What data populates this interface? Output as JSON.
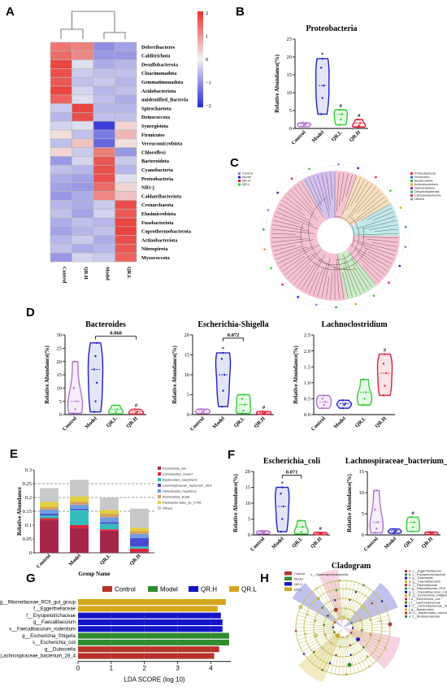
{
  "panel_letters": {
    "a": "A",
    "b": "B",
    "c": "C",
    "d": "D",
    "e": "E",
    "f": "F",
    "g": "G",
    "h": "H"
  },
  "colors": {
    "control": "#b070d0",
    "model": "#2020c8",
    "qrl": "#33cc33",
    "qrh": "#e0203a",
    "heat_high": "#e8322d",
    "heat_mid": "#f2f2f2",
    "heat_low": "#2a2ad6",
    "lda_control": "#b8322a",
    "lda_model": "#2e8b2e",
    "lda_qrh": "#1515c8",
    "lda_qrl": "#d4a61c"
  },
  "chart_data": [
    {
      "id": "A",
      "type": "heatmap",
      "columns": [
        "Control",
        "QR.H",
        "Model",
        "QR.L"
      ],
      "rows": [
        "Deferribacteres",
        "Calditrichota",
        "Desulfobacterota",
        "Cloacimonadota",
        "Gemmatimonadota",
        "Acidobacteriota",
        "unidentified_Bacteria",
        "Spirochaetota",
        "Deinococcota",
        "Synergistota",
        "Firmicutes",
        "Verrucomicrobiota",
        "Chloroflexi",
        "Bacteroidota",
        "Cyanobacteria",
        "Proteobacteria",
        "NB1-j",
        "Caldatribacteriota",
        "Crenarchaeota",
        "Elusimicrobiota",
        "Fusobacteriota",
        "Coprothermobacterota",
        "Actinobacteriota",
        "Nitrospirota",
        "Myxococcota"
      ],
      "values": [
        [
          1.3,
          1.2,
          -1.0,
          -0.8
        ],
        [
          1.4,
          1.1,
          -0.9,
          -0.9
        ],
        [
          1.8,
          -0.2,
          -0.7,
          -0.6
        ],
        [
          1.7,
          -0.4,
          -0.5,
          -0.5
        ],
        [
          1.6,
          -0.5,
          -0.4,
          -0.6
        ],
        [
          1.8,
          -0.3,
          -0.6,
          -0.5
        ],
        [
          1.5,
          -0.2,
          -0.5,
          -0.7
        ],
        [
          -0.4,
          1.8,
          -0.6,
          -0.6
        ],
        [
          -0.6,
          1.7,
          -0.5,
          -0.5
        ],
        [
          -0.3,
          -0.2,
          -1.8,
          0.3
        ],
        [
          0.2,
          -0.5,
          -1.2,
          0.6
        ],
        [
          -0.5,
          0.5,
          -1.4,
          0.2
        ],
        [
          0.3,
          -0.4,
          1.2,
          -0.9
        ],
        [
          -0.9,
          -0.3,
          1.6,
          -0.4
        ],
        [
          -0.5,
          -0.6,
          1.7,
          -0.6
        ],
        [
          -0.7,
          -0.8,
          1.7,
          -0.2
        ],
        [
          -0.8,
          -0.9,
          1.4,
          0.3
        ],
        [
          -0.9,
          -0.7,
          1.1,
          0.5
        ],
        [
          -0.6,
          -0.7,
          -0.4,
          1.7
        ],
        [
          -0.5,
          -0.8,
          -0.3,
          1.6
        ],
        [
          -0.7,
          -0.5,
          -0.6,
          1.8
        ],
        [
          -0.8,
          -0.6,
          -0.5,
          1.8
        ],
        [
          -0.6,
          -0.4,
          -0.7,
          1.7
        ],
        [
          -0.5,
          -0.7,
          -0.6,
          1.6
        ],
        [
          -0.9,
          -0.3,
          -0.4,
          1.5
        ]
      ],
      "scale": {
        "ticks": [
          "2",
          "1",
          "0",
          "−1",
          "−2"
        ],
        "range": [
          -2,
          2
        ]
      }
    },
    {
      "id": "B",
      "type": "violin",
      "title": "Proteobacteria",
      "ylabel": "Relative Abundance(%)",
      "ylim": [
        0,
        25
      ],
      "yticks": [
        0,
        5,
        10,
        15,
        20,
        25
      ],
      "categories": [
        "Control",
        "Model",
        "QR.L",
        "QR.H"
      ],
      "series": [
        {
          "points": [
            0.5,
            0.9,
            1.2,
            1.6
          ]
        },
        {
          "points": [
            4.0,
            8.5,
            12.0,
            17.0,
            19.5
          ]
        },
        {
          "points": [
            1.0,
            2.5,
            4.0,
            5.2
          ]
        },
        {
          "points": [
            0.4,
            0.8,
            1.5,
            2.5
          ]
        }
      ],
      "annotations": [
        {
          "category": "Model",
          "text": "*"
        },
        {
          "category": "QR.L",
          "text": "#"
        },
        {
          "category": "QR.H",
          "text": "#"
        }
      ]
    },
    {
      "id": "D1",
      "type": "violin",
      "title": "Bacteroides",
      "ylabel": "Relative Abundance(%)",
      "ylim": [
        0,
        30
      ],
      "yticks": [
        0,
        5,
        10,
        15,
        20,
        25,
        30
      ],
      "categories": [
        "Control",
        "Model",
        "QR.L",
        "QR.H"
      ],
      "series": [
        {
          "points": [
            0.5,
            2.0,
            5.0,
            10.0,
            20.0
          ]
        },
        {
          "points": [
            1.0,
            5.0,
            12.0,
            17.0,
            22.0,
            27.0
          ]
        },
        {
          "points": [
            0.3,
            1.0,
            2.0,
            3.5
          ]
        },
        {
          "points": [
            0.2,
            0.6,
            1.2,
            2.0
          ]
        }
      ],
      "bracket": {
        "from": "Model",
        "to": "QR.H",
        "text": "0.060",
        "y": 29.5
      },
      "annotations": [
        {
          "category": "QR.H",
          "text": "#"
        }
      ]
    },
    {
      "id": "D2",
      "type": "violin",
      "title": "Escherichia-Shigella",
      "ylabel": "Relative Abundance(%)",
      "ylim": [
        0,
        20
      ],
      "yticks": [
        0,
        5,
        10,
        15,
        20
      ],
      "categories": [
        "Control",
        "Model",
        "QR.L",
        "QR.H"
      ],
      "series": [
        {
          "points": [
            0.3,
            0.6,
            1.0,
            1.4
          ]
        },
        {
          "points": [
            2.0,
            6.0,
            10.0,
            14.0,
            15.5
          ]
        },
        {
          "points": [
            0.3,
            1.0,
            2.5,
            4.0,
            5.0
          ]
        },
        {
          "points": [
            0.1,
            0.3,
            0.5,
            0.8
          ]
        }
      ],
      "bracket": {
        "from": "Model",
        "to": "QR.L",
        "text": "0.072",
        "y": 19.2
      },
      "annotations": [
        {
          "category": "Model",
          "text": "*"
        },
        {
          "category": "QR.H",
          "text": "#"
        }
      ]
    },
    {
      "id": "D3",
      "type": "violin",
      "title": "Lachnoclostridium",
      "ylabel": "Relative Abundance(%)",
      "ylim": [
        0,
        2.5
      ],
      "yticks": [
        0.0,
        0.5,
        1.0,
        1.5,
        2.0,
        2.5
      ],
      "categories": [
        "Control",
        "Model",
        "QR.L",
        "QR.H"
      ],
      "series": [
        {
          "points": [
            0.2,
            0.3,
            0.4,
            0.5,
            0.6
          ]
        },
        {
          "points": [
            0.2,
            0.3,
            0.35,
            0.45
          ]
        },
        {
          "points": [
            0.3,
            0.5,
            0.7,
            1.1
          ]
        },
        {
          "points": [
            0.6,
            0.9,
            1.3,
            1.6,
            1.9
          ]
        }
      ],
      "annotations": [
        {
          "category": "QR.H",
          "text": "#"
        }
      ]
    },
    {
      "id": "E",
      "type": "bar",
      "stacked": true,
      "ylabel": "Relative Abundance",
      "xlabel": "Group Name",
      "ylim": [
        0,
        0.3
      ],
      "yticks": [
        0,
        0.05,
        0.1,
        0.15,
        0.2,
        0.25,
        0.3
      ],
      "categories": [
        "Control",
        "Model",
        "QR.L",
        "QR.H"
      ],
      "series": [
        {
          "name": "Escherichia_coli",
          "color": "#a6264a",
          "values": [
            0.12,
            0.09,
            0.08,
            0.005
          ]
        },
        {
          "name": "Lactobacillus_reuteri",
          "color": "#e8203a",
          "values": [
            0.005,
            0.01,
            0.005,
            0.01
          ]
        },
        {
          "name": "Bacteroides_caecimuris",
          "color": "#35bdbd",
          "values": [
            0.01,
            0.055,
            0.02,
            0.008
          ]
        },
        {
          "name": "Lachnospiraceae_bacterium_28-4",
          "color": "#4a4ad0",
          "values": [
            0.006,
            0.004,
            0.006,
            0.03
          ]
        },
        {
          "name": "Helicobacter_hepaticus",
          "color": "#6f9de0",
          "values": [
            0.015,
            0.015,
            0.018,
            0.015
          ]
        },
        {
          "name": "Romboutsia_ilealis",
          "color": "#d8a060",
          "values": [
            0.01,
            0.01,
            0.012,
            0.01
          ]
        },
        {
          "name": "Parabacteroides_sp_CT06",
          "color": "#e0d040",
          "values": [
            0.018,
            0.02,
            0.014,
            0.012
          ]
        },
        {
          "name": "Others",
          "color": "#c8c8c8",
          "values": [
            0.05,
            0.06,
            0.045,
            0.07
          ]
        }
      ],
      "reference_lines": [
        0.25,
        0.2,
        0.15
      ]
    },
    {
      "id": "F1",
      "type": "violin",
      "title": "Escherichia_coli",
      "ylabel": "Relative Abundance(%)",
      "ylim": [
        0,
        20
      ],
      "yticks": [
        0,
        5,
        10,
        15,
        20
      ],
      "categories": [
        "Control",
        "Model",
        "QR.L",
        "QR.H"
      ],
      "series": [
        {
          "points": [
            0.3,
            0.6,
            0.9,
            1.3
          ]
        },
        {
          "points": [
            1.0,
            5.0,
            9.0,
            13.0,
            15.0
          ]
        },
        {
          "points": [
            0.3,
            1.0,
            2.5,
            4.5
          ]
        },
        {
          "points": [
            0.1,
            0.3,
            0.6,
            0.8
          ]
        }
      ],
      "bracket": {
        "from": "Model",
        "to": "QR.L",
        "text": "0.071",
        "y": 18.8
      },
      "annotations": [
        {
          "category": "Model",
          "text": "*"
        },
        {
          "category": "QR.H",
          "text": "#"
        }
      ]
    },
    {
      "id": "F2",
      "type": "violin",
      "title": "Lachnospiraceae_bacterium_28-4",
      "ylabel": "Relative Abundance(%)",
      "ylim": [
        0,
        15
      ],
      "yticks": [
        0,
        5,
        10,
        15
      ],
      "categories": [
        "Control",
        "Model",
        "QR.L",
        "QR.H"
      ],
      "series": [
        {
          "points": [
            0.5,
            1.5,
            3.0,
            6.0,
            10.5
          ]
        },
        {
          "points": [
            0.4,
            0.7,
            1.0,
            1.4
          ]
        },
        {
          "points": [
            0.8,
            1.8,
            3.0,
            4.2
          ]
        },
        {
          "points": [
            0.1,
            0.3,
            0.5,
            0.7
          ]
        }
      ],
      "annotations": [
        {
          "category": "QR.L",
          "text": "#"
        }
      ]
    },
    {
      "id": "G",
      "type": "bar",
      "orientation": "horizontal",
      "xlabel": "LDA SCORE (log 10)",
      "xlim": [
        0,
        4.6
      ],
      "xticks": [
        0,
        1,
        2,
        3,
        4
      ],
      "legend": [
        "Control",
        "Model",
        "QR.H",
        "QR.L"
      ],
      "categories": [
        "g__Rikenellaceae_RC9_gut_group",
        "f__Eggerthellaceae",
        "f__Erysipelotrichaceae",
        "g__Faecalibaculum",
        "s__Faecalibaculum_rodentium",
        "g__Escherichia_Shigella",
        "s__Escherichia_coli",
        "g__Dubosiella",
        "s__Lachnospiraceae_bacterium_28_4"
      ],
      "values": [
        4.45,
        4.2,
        4.3,
        4.35,
        4.35,
        4.55,
        4.55,
        4.25,
        4.1
      ],
      "groups": [
        "QR.L",
        "QR.L",
        "QR.H",
        "QR.H",
        "QR.H",
        "Model",
        "Model",
        "Control",
        "Control"
      ]
    }
  ],
  "panel_c": {
    "legend_left": [
      "Control",
      "Model",
      "QR.H",
      "QR.L"
    ],
    "legend_right": [
      "Proteobacteria",
      "Firmicutes",
      "Bacteroidota",
      "Actinobacteriota",
      "Spirochaetota",
      "Desulfobacterota",
      "Campylobacterota",
      "Others"
    ]
  },
  "panel_h": {
    "title": "Cladogram",
    "legend": [
      "Control",
      "Model",
      "QR.H",
      "QR.L"
    ],
    "legend_right": [
      "a: c__Eggerthellaceae",
      "b: f__Erysipelotrichaceae",
      "c: g__Dubosiella",
      "d: g__Faecalibaculum",
      "e: f__Rikenellaceae",
      "f: g__Rikenellaceae_RC9",
      "g: s__Faecalibaculum_rodentium",
      "h: g__Escherichia_Shigella",
      "i: s__Escherichia_coli",
      "j: f__Lachnospiraceae",
      "k: s__Lachnospiraceae_28_4",
      "l: g__Bacteroides",
      "m: s__Bacteroides_caecimuris",
      "n: f__Muribaculaceae"
    ],
    "highlight_label": "c__Gammaproteobacteria"
  }
}
